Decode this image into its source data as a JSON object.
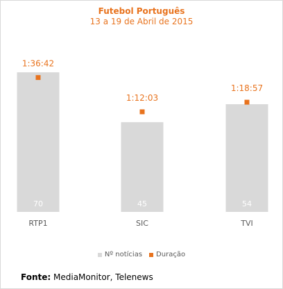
{
  "chart_data": {
    "type": "bar",
    "title": "Futebol Português",
    "subtitle": "13 a 19 de Abril de 2015",
    "categories": [
      "RTP1",
      "SIC",
      "TVI"
    ],
    "series": [
      {
        "name": "Nº notícias",
        "type": "bar",
        "values": [
          70,
          45,
          54
        ],
        "color": "#d9d9d9"
      },
      {
        "name": "Duração",
        "type": "scatter",
        "values": [
          "1:36:42",
          "1:12:03",
          "1:18:57"
        ],
        "seconds": [
          5802,
          4323,
          4737
        ],
        "color": "#e8731e"
      }
    ],
    "legend_position": "bottom",
    "grid": false
  },
  "colors": {
    "accent": "#e8731e",
    "bar": "#d9d9d9",
    "bar_label": "#ffffff",
    "axis_text": "#595959"
  },
  "legend": {
    "items": [
      {
        "label": "Nº notícias",
        "color": "#d9d9d9"
      },
      {
        "label": "Duração",
        "color": "#e8731e"
      }
    ]
  },
  "source": {
    "label": "Fonte:",
    "text": "MediaMonitor, Telenews"
  }
}
